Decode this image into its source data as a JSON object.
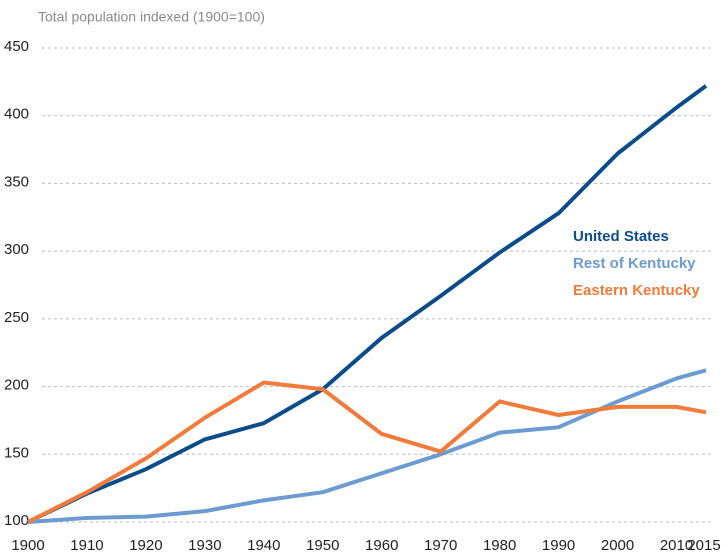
{
  "chart_data": {
    "type": "line",
    "title": "Total population indexed (1900=100)",
    "x": [
      1900,
      1910,
      1920,
      1930,
      1940,
      1950,
      1960,
      1970,
      1980,
      1990,
      2000,
      2010,
      2015
    ],
    "series": [
      {
        "name": "United States",
        "color": "#0d4c8b",
        "values": [
          100,
          121,
          139,
          161,
          173,
          198,
          236,
          267,
          299,
          328,
          372,
          406,
          422
        ]
      },
      {
        "name": "Rest of Kentucky",
        "color": "#6b9bd1",
        "values": [
          100,
          103,
          104,
          108,
          116,
          122,
          136,
          150,
          166,
          170,
          189,
          206,
          212
        ]
      },
      {
        "name": "Eastern Kentucky",
        "color": "#f07b3a",
        "values": [
          100,
          122,
          147,
          177,
          203,
          198,
          165,
          152,
          189,
          179,
          185,
          185,
          181
        ]
      }
    ],
    "xlim": [
      1900,
      2015
    ],
    "xticks": [
      1900,
      1910,
      1920,
      1930,
      1940,
      1950,
      1960,
      1970,
      1980,
      1990,
      2000,
      2010,
      2015
    ],
    "ylim": [
      100,
      450
    ],
    "yticks": [
      100,
      150,
      200,
      250,
      300,
      350,
      400,
      450
    ],
    "grid": true
  }
}
